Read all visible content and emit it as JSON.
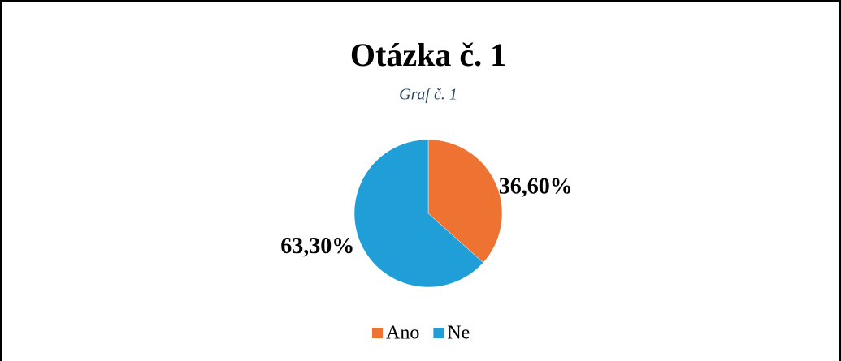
{
  "chart_data": {
    "type": "pie",
    "title": "Otázka č. 1",
    "subtitle": "Graf č. 1",
    "categories": [
      "Ano",
      "Ne"
    ],
    "values": [
      36.6,
      63.3
    ],
    "value_labels": [
      "36,60%",
      "63,30%"
    ],
    "colors": [
      "#ee7232",
      "#1f9ed8"
    ],
    "legend": "bottom"
  }
}
